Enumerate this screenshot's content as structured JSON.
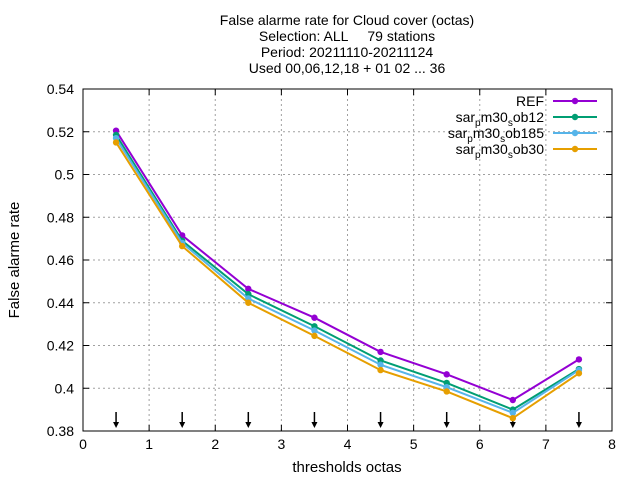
{
  "chart_data": {
    "type": "line",
    "title_lines": [
      "False alarme rate  for Cloud cover (octas)",
      "Selection: ALL     79 stations",
      "Period: 20211110-20211124",
      "Used 00,06,12,18 + 01 02 ... 36"
    ],
    "xlabel": "thresholds octas",
    "ylabel": "False alarme rate",
    "xlim": [
      0,
      8
    ],
    "ylim": [
      0.38,
      0.54
    ],
    "xticks": [
      0,
      1,
      2,
      3,
      4,
      5,
      6,
      7,
      8
    ],
    "yticks": [
      0.38,
      0.4,
      0.42,
      0.44,
      0.46,
      0.48,
      0.5,
      0.52,
      0.54
    ],
    "xtick_labels": [
      "0",
      "1",
      "2",
      "3",
      "4",
      "5",
      "6",
      "7",
      "8"
    ],
    "ytick_labels": [
      "0.38",
      "0.4",
      "0.42",
      "0.44",
      "0.46",
      "0.48",
      "0.5",
      "0.52",
      "0.54"
    ],
    "grid": true,
    "legend_position": "top-right",
    "x": [
      0.5,
      1.5,
      2.5,
      3.5,
      4.5,
      5.5,
      6.5,
      7.5
    ],
    "arrow_x": [
      0.5,
      1.5,
      2.5,
      3.5,
      4.5,
      5.5,
      6.5,
      7.5
    ],
    "series": [
      {
        "name": "REF",
        "legend_parts": [
          {
            "text": "REF",
            "sub": false
          }
        ],
        "color": "#9400d3",
        "values": [
          0.5205,
          0.4715,
          0.4465,
          0.433,
          0.417,
          0.4065,
          0.3945,
          0.4135
        ]
      },
      {
        "name": "sar_pm30_sob12",
        "legend_parts": [
          {
            "text": "sar",
            "sub": false
          },
          {
            "text": "p",
            "sub": true
          },
          {
            "text": "m30",
            "sub": false
          },
          {
            "text": "s",
            "sub": true
          },
          {
            "text": "ob12",
            "sub": false
          }
        ],
        "color": "#009e73",
        "values": [
          0.5185,
          0.469,
          0.444,
          0.429,
          0.413,
          0.4025,
          0.39,
          0.409
        ]
      },
      {
        "name": "sar_pm30_sob185",
        "legend_parts": [
          {
            "text": "sar",
            "sub": false
          },
          {
            "text": "p",
            "sub": true
          },
          {
            "text": "m30",
            "sub": false
          },
          {
            "text": "s",
            "sub": true
          },
          {
            "text": "ob185",
            "sub": false
          }
        ],
        "color": "#56b4e9",
        "values": [
          0.517,
          0.468,
          0.442,
          0.427,
          0.411,
          0.4005,
          0.3885,
          0.4085
        ]
      },
      {
        "name": "sar_pm30_sob30",
        "legend_parts": [
          {
            "text": "sar",
            "sub": false
          },
          {
            "text": "p",
            "sub": true
          },
          {
            "text": "m30",
            "sub": false
          },
          {
            "text": "s",
            "sub": true
          },
          {
            "text": "ob30",
            "sub": false
          }
        ],
        "color": "#e69f00",
        "values": [
          0.515,
          0.4665,
          0.44,
          0.4245,
          0.4085,
          0.3985,
          0.386,
          0.407
        ]
      }
    ]
  }
}
